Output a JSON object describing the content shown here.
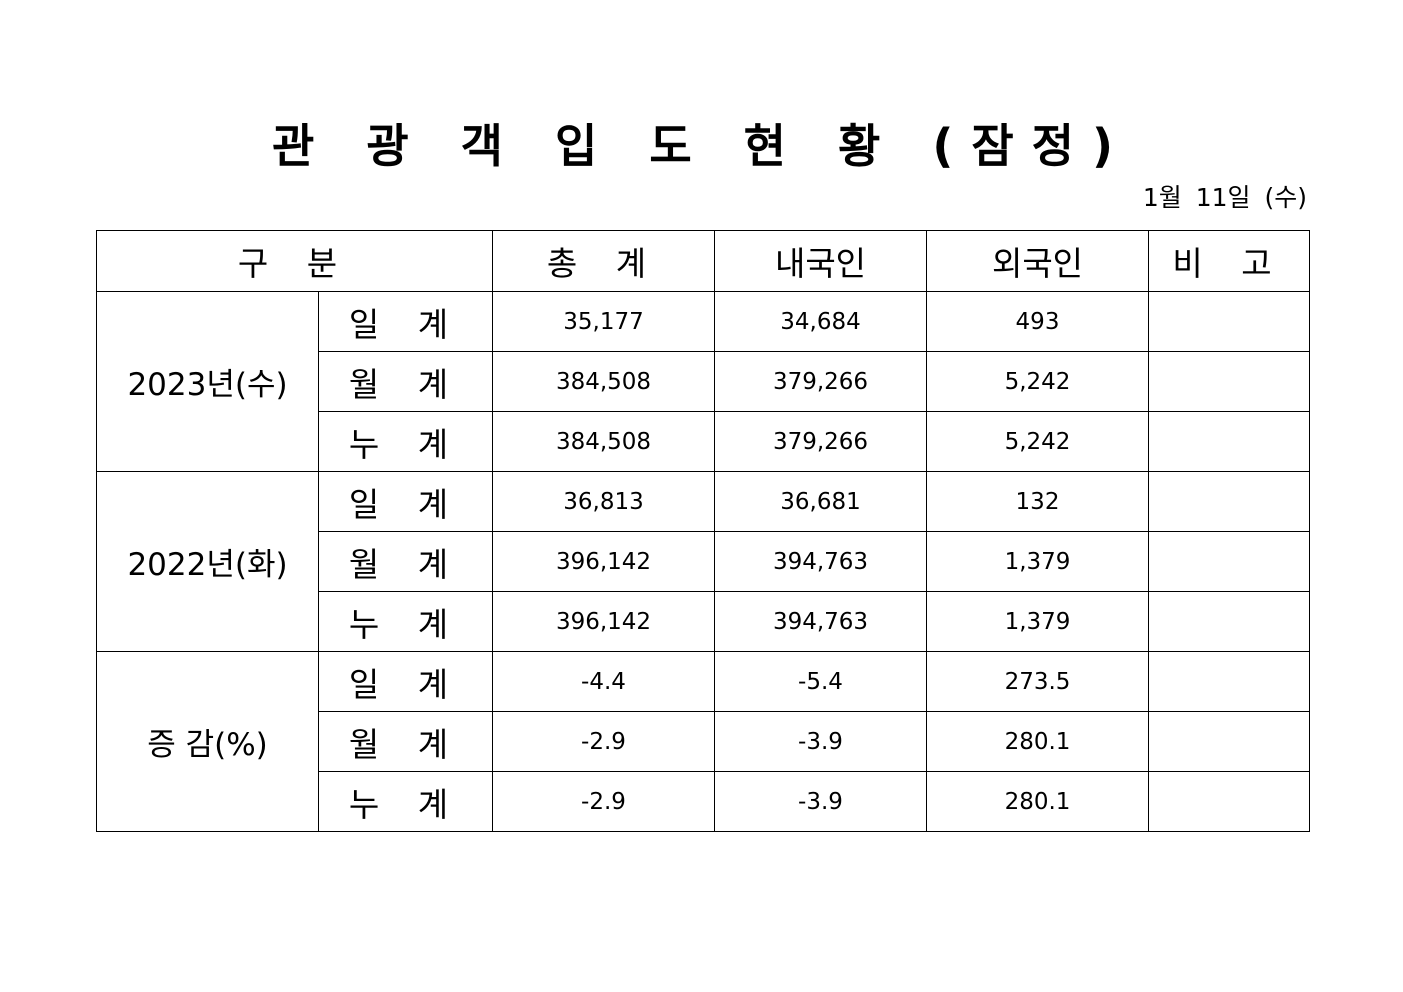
{
  "title": "관 광 객 입 도 현 황 (잠정)",
  "date": "1월 11일 (수)",
  "headers": {
    "category": "구 분",
    "total": "총 계",
    "domestic": "내국인",
    "foreign": "외국인",
    "note": "비 고"
  },
  "groups": [
    {
      "label": "2023년(수)",
      "rows": [
        {
          "sub": "일 계",
          "total": "35,177",
          "domestic": "34,684",
          "foreign": "493",
          "note": ""
        },
        {
          "sub": "월 계",
          "total": "384,508",
          "domestic": "379,266",
          "foreign": "5,242",
          "note": ""
        },
        {
          "sub": "누 계",
          "total": "384,508",
          "domestic": "379,266",
          "foreign": "5,242",
          "note": ""
        }
      ]
    },
    {
      "label": "2022년(화)",
      "rows": [
        {
          "sub": "일 계",
          "total": "36,813",
          "domestic": "36,681",
          "foreign": "132",
          "note": ""
        },
        {
          "sub": "월 계",
          "total": "396,142",
          "domestic": "394,763",
          "foreign": "1,379",
          "note": ""
        },
        {
          "sub": "누 계",
          "total": "396,142",
          "domestic": "394,763",
          "foreign": "1,379",
          "note": ""
        }
      ]
    },
    {
      "label": "증 감(%)",
      "rows": [
        {
          "sub": "일 계",
          "total": "-4.4",
          "domestic": "-5.4",
          "foreign": "273.5",
          "note": ""
        },
        {
          "sub": "월 계",
          "total": "-2.9",
          "domestic": "-3.9",
          "foreign": "280.1",
          "note": ""
        },
        {
          "sub": "누 계",
          "total": "-2.9",
          "domestic": "-3.9",
          "foreign": "280.1",
          "note": ""
        }
      ]
    }
  ]
}
